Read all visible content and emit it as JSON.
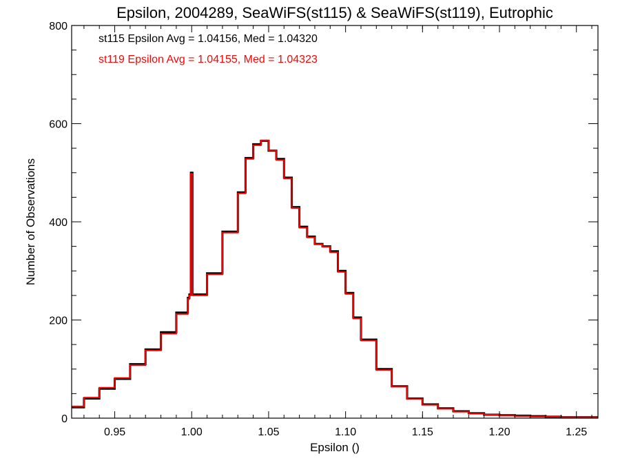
{
  "chart_data": {
    "type": "line",
    "title": "Epsilon, 2004289, SeaWiFS(st115) & SeaWiFS(st119), Eutrophic",
    "xlabel": "Epsilon ()",
    "ylabel": "Number of Observations",
    "xlim": [
      0.922,
      1.264
    ],
    "ylim": [
      0,
      800
    ],
    "xticks": [
      0.95,
      1.0,
      1.05,
      1.1,
      1.15,
      1.2,
      1.25
    ],
    "xtick_labels": [
      "0.95",
      "1.00",
      "1.05",
      "1.10",
      "1.15",
      "1.20",
      "1.25"
    ],
    "yticks": [
      0,
      200,
      400,
      600,
      800
    ],
    "ytick_labels": [
      "0",
      "200",
      "400",
      "600",
      "800"
    ],
    "grid": false,
    "annotations": [
      {
        "text": "st115 Epsilon Avg = 1.04156, Med = 1.04320",
        "color": "#000000"
      },
      {
        "text": "st119 Epsilon Avg = 1.04155, Med = 1.04323",
        "color": "#ff0000"
      }
    ],
    "series": [
      {
        "name": "st115",
        "color": "#000000",
        "x": [
          0.922,
          0.93,
          0.94,
          0.95,
          0.96,
          0.97,
          0.98,
          0.99,
          0.9975,
          0.9985,
          0.9995,
          1.0005,
          1.01,
          1.02,
          1.03,
          1.035,
          1.04,
          1.045,
          1.05,
          1.055,
          1.06,
          1.065,
          1.07,
          1.075,
          1.08,
          1.085,
          1.09,
          1.095,
          1.1,
          1.105,
          1.11,
          1.12,
          1.13,
          1.14,
          1.15,
          1.16,
          1.17,
          1.18,
          1.19,
          1.2,
          1.21,
          1.22,
          1.23,
          1.24,
          1.25,
          1.264
        ],
        "values": [
          22,
          40,
          60,
          80,
          110,
          140,
          175,
          215,
          245,
          252,
          500,
          252,
          295,
          380,
          460,
          530,
          558,
          565,
          545,
          528,
          490,
          430,
          390,
          370,
          355,
          350,
          340,
          300,
          255,
          205,
          160,
          100,
          65,
          40,
          28,
          20,
          14,
          10,
          7,
          6,
          5,
          4,
          3,
          2,
          2,
          2
        ]
      },
      {
        "name": "st119",
        "color": "#ff0000",
        "x": [
          0.922,
          0.93,
          0.94,
          0.95,
          0.96,
          0.97,
          0.98,
          0.99,
          0.9975,
          0.9985,
          0.9995,
          1.0005,
          1.01,
          1.02,
          1.03,
          1.035,
          1.04,
          1.045,
          1.05,
          1.055,
          1.06,
          1.065,
          1.07,
          1.075,
          1.08,
          1.085,
          1.09,
          1.095,
          1.1,
          1.105,
          1.11,
          1.12,
          1.13,
          1.14,
          1.15,
          1.16,
          1.17,
          1.18,
          1.19,
          1.2,
          1.21,
          1.22,
          1.23,
          1.24,
          1.25,
          1.264
        ],
        "values": [
          24,
          42,
          62,
          82,
          108,
          138,
          172,
          212,
          243,
          250,
          498,
          250,
          293,
          378,
          458,
          528,
          556,
          566,
          546,
          526,
          488,
          428,
          388,
          368,
          354,
          349,
          338,
          298,
          253,
          203,
          158,
          98,
          64,
          39,
          27,
          19,
          13,
          9,
          7,
          5,
          4,
          3,
          3,
          2,
          2,
          2
        ]
      }
    ]
  }
}
